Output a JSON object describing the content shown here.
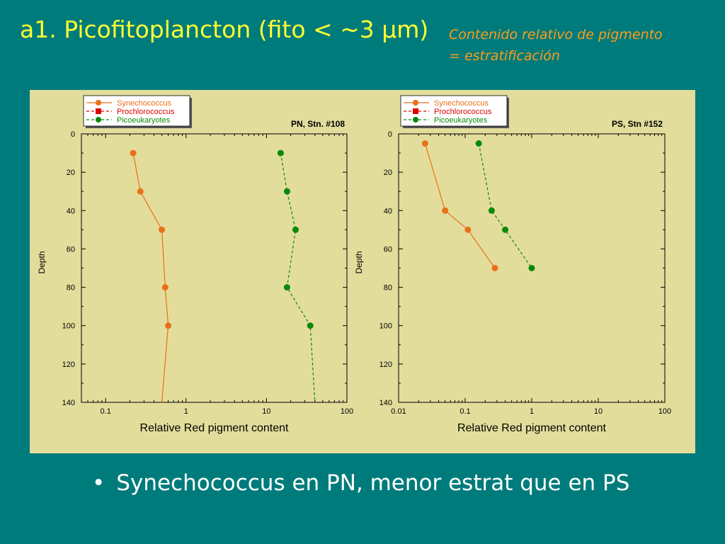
{
  "slide": {
    "title": "a1. Picofitoplancton (fito < ~3 µm)",
    "subtitle_line1": "Contenido relativo de pigmento",
    "subtitle_line2": "= estratificación",
    "bullet_symbol": "•",
    "bullet_text": "Synechococcus en PN, menor estrat que en PS"
  },
  "colors": {
    "background": "#007b7b",
    "title": "#ffff33",
    "subtitle": "#ff9c1a",
    "panel": "#e3dd9c",
    "synechococcus": "#e8701a",
    "prochlorococcus": "#e00000",
    "picoeukaryotes": "#0a8a0a"
  },
  "chart_data": [
    {
      "type": "scatter",
      "title": "PN, Stn. #108",
      "xlabel": "Relative Red pigment content",
      "ylabel": "Depth",
      "x_scale": "log",
      "xlim": [
        0.05,
        100
      ],
      "x_ticks": [
        0.1,
        1,
        10,
        100
      ],
      "x_tick_labels": [
        "0.1",
        "1",
        "10",
        "100"
      ],
      "y_reversed": true,
      "ylim": [
        0,
        140
      ],
      "y_ticks": [
        0,
        20,
        40,
        60,
        80,
        100,
        120,
        140
      ],
      "y_tick_labels": [
        "0",
        "20",
        "40",
        "60",
        "80",
        "100",
        "120",
        "140"
      ],
      "legend_position": "top-left",
      "legend": [
        "Synechococcus",
        "Prochlorococcus",
        "Picoeukaryotes"
      ],
      "series": [
        {
          "name": "Synechococcus",
          "color": "#e8701a",
          "line": "solid",
          "marker": "circle",
          "points": [
            [
              0.22,
              10
            ],
            [
              0.27,
              30
            ],
            [
              0.5,
              50
            ],
            [
              0.55,
              80
            ],
            [
              0.6,
              100
            ]
          ],
          "extend_to": [
            0.5,
            140
          ]
        },
        {
          "name": "Picoeukaryotes",
          "color": "#0a8a0a",
          "line": "dashed",
          "marker": "circle",
          "points": [
            [
              15,
              10
            ],
            [
              18,
              30
            ],
            [
              23,
              50
            ],
            [
              18,
              80
            ],
            [
              35,
              100
            ]
          ],
          "extend_to": [
            40,
            140
          ]
        }
      ]
    },
    {
      "type": "scatter",
      "title": "PS, Stn #152",
      "xlabel": "Relative Red pigment content",
      "ylabel": "Depth",
      "x_scale": "log",
      "xlim": [
        0.01,
        100
      ],
      "x_ticks": [
        0.01,
        0.1,
        1,
        10,
        100
      ],
      "x_tick_labels": [
        "0.01",
        "0.1",
        "1",
        "10",
        "100"
      ],
      "y_reversed": true,
      "ylim": [
        0,
        140
      ],
      "y_ticks": [
        0,
        20,
        40,
        60,
        80,
        100,
        120,
        140
      ],
      "y_tick_labels": [
        "0",
        "20",
        "40",
        "60",
        "80",
        "100",
        "120",
        "140"
      ],
      "legend_position": "top-left",
      "legend": [
        "Synechococcus",
        "Prochlorococcus",
        "Picoeukaryotes"
      ],
      "series": [
        {
          "name": "Synechococcus",
          "color": "#e8701a",
          "line": "solid",
          "marker": "circle",
          "points": [
            [
              0.025,
              5
            ],
            [
              0.05,
              40
            ],
            [
              0.11,
              50
            ],
            [
              0.28,
              70
            ]
          ]
        },
        {
          "name": "Picoeukaryotes",
          "color": "#0a8a0a",
          "line": "dashed",
          "marker": "circle",
          "points": [
            [
              0.16,
              5
            ],
            [
              0.25,
              40
            ],
            [
              0.4,
              50
            ],
            [
              1.0,
              70
            ]
          ]
        }
      ]
    }
  ]
}
